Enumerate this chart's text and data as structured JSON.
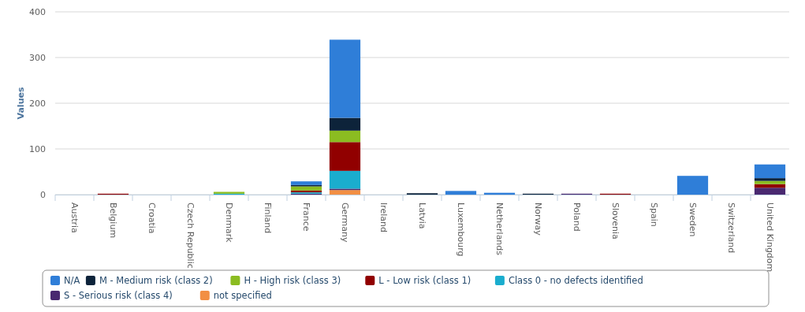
{
  "chart_data": {
    "type": "bar",
    "stacked": true,
    "ylabel": "Values",
    "ylim": [
      0,
      400
    ],
    "yticks": [
      0,
      100,
      200,
      300,
      400
    ],
    "grid": "y",
    "legend": "bottom",
    "categories": [
      "Austria",
      "Belgium",
      "Croatia",
      "Czech Republic",
      "Denmark",
      "Finland",
      "France",
      "Germany",
      "Ireland",
      "Latvia",
      "Luxembourg",
      "Netherlands",
      "Norway",
      "Poland",
      "Slovenia",
      "Spain",
      "Sweden",
      "Switzerland",
      "United Kingdom"
    ],
    "series": [
      {
        "name": "not specified",
        "color": "#f28f43",
        "values": [
          0,
          0,
          0,
          0,
          0,
          0,
          0,
          10,
          0,
          0,
          0,
          0,
          0,
          0,
          0,
          0,
          0,
          0,
          0
        ]
      },
      {
        "name": "S - Serious risk (class 4)",
        "color": "#492970",
        "values": [
          0,
          0,
          0,
          0,
          0,
          0,
          2,
          3,
          0,
          0,
          0,
          0,
          0,
          2,
          0,
          0,
          0,
          0,
          15
        ]
      },
      {
        "name": "Class 0 - no defects identified",
        "color": "#1aadce",
        "values": [
          0,
          0,
          0,
          0,
          2,
          0,
          3,
          39,
          0,
          0,
          0,
          0,
          0,
          0,
          0,
          0,
          0,
          0,
          0
        ]
      },
      {
        "name": "L - Low risk (class 1)",
        "color": "#910000",
        "values": [
          0,
          2,
          0,
          0,
          0,
          0,
          4,
          63,
          0,
          0,
          0,
          0,
          0,
          0,
          2,
          0,
          0,
          0,
          8
        ]
      },
      {
        "name": "H - High risk (class 3)",
        "color": "#8bbc21",
        "values": [
          0,
          0,
          0,
          0,
          4,
          0,
          9,
          25,
          0,
          0,
          0,
          0,
          0,
          0,
          0,
          0,
          0,
          0,
          7
        ]
      },
      {
        "name": "M - Medium risk (class 2)",
        "color": "#0d233a",
        "values": [
          0,
          0,
          0,
          0,
          0,
          0,
          3,
          28,
          0,
          3,
          0,
          0,
          2,
          0,
          0,
          0,
          0,
          0,
          6
        ]
      },
      {
        "name": "N/A",
        "color": "#2f7ed8",
        "values": [
          0,
          0,
          0,
          0,
          0,
          0,
          8,
          171,
          0,
          0,
          8,
          4,
          0,
          0,
          0,
          0,
          41,
          0,
          30
        ]
      }
    ]
  }
}
